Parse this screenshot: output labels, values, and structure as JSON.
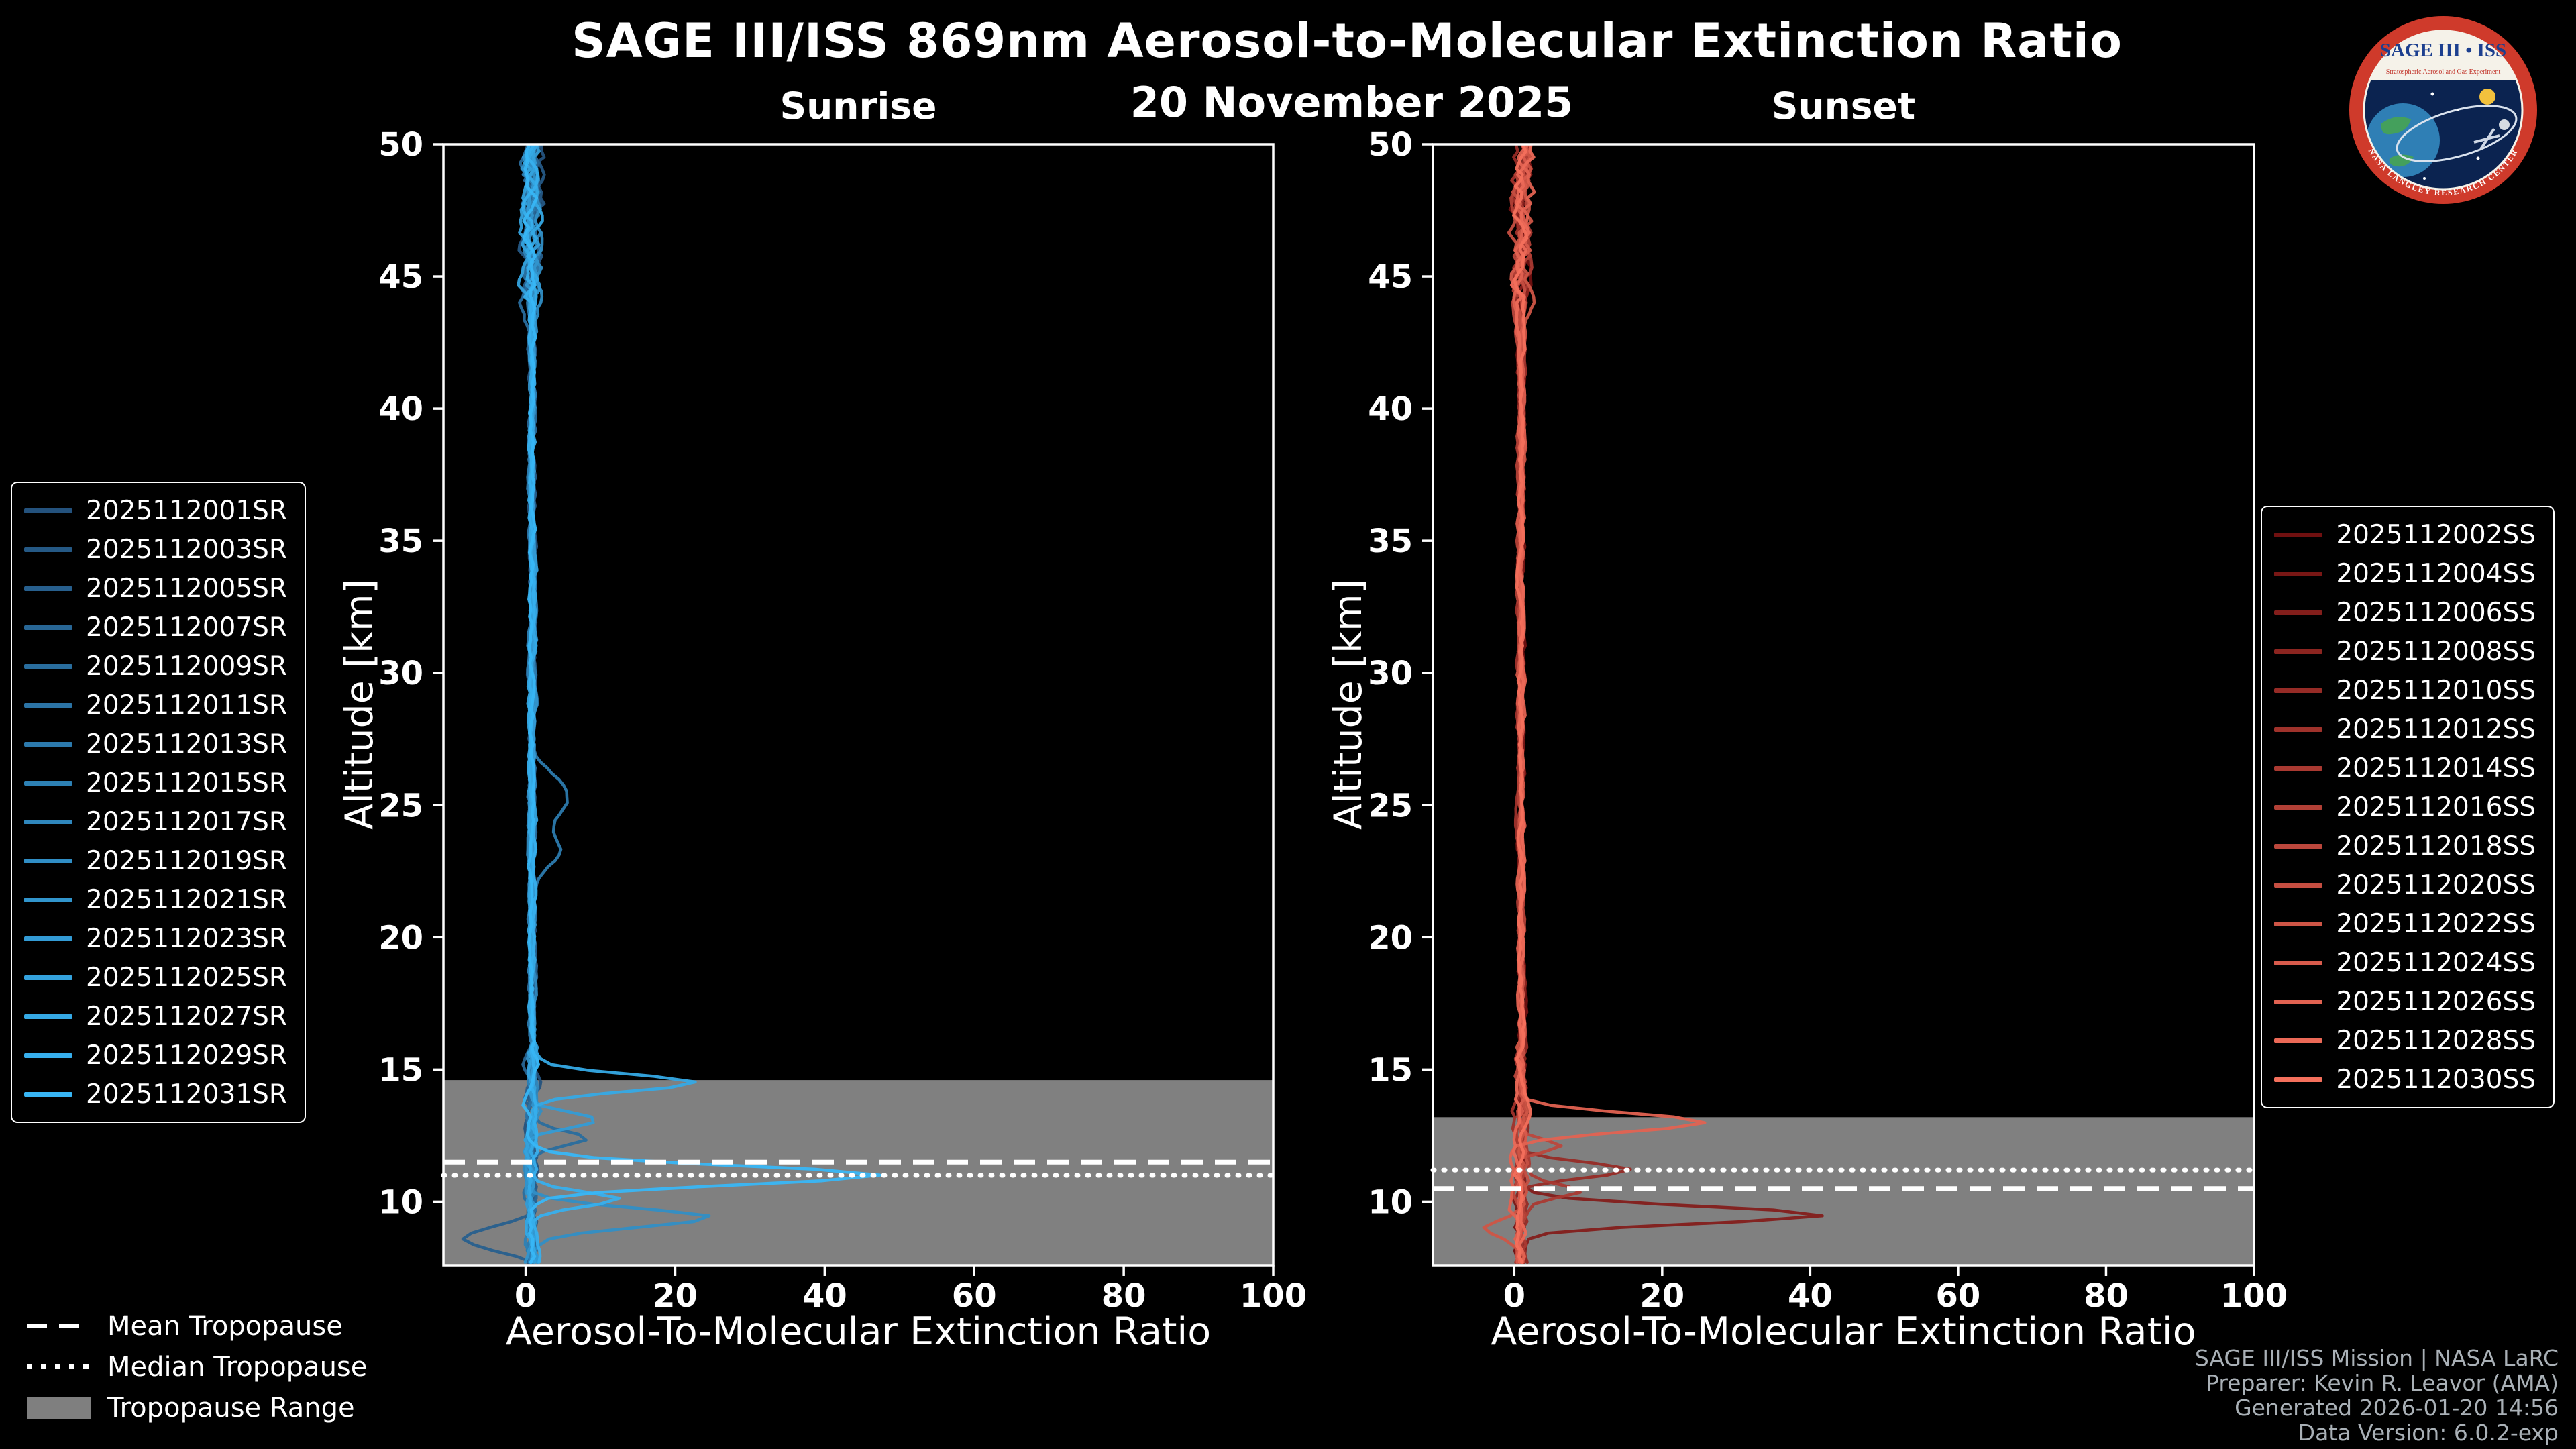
{
  "header": {
    "title": "SAGE III/ISS 869nm Aerosol-to-Molecular Extinction Ratio",
    "date": "20 November 2025"
  },
  "logo": {
    "name": "SAGE III • ISS",
    "subtitle": "Stratospheric Aerosol and Gas Experiment",
    "ring_text": "NASA LANGLEY RESEARCH CENTER",
    "border_color": "#cf3a2b",
    "field_color": "#0b2350"
  },
  "tropopause_legend": {
    "mean_label": "Mean Tropopause",
    "median_label": "Median Tropopause",
    "range_label": "Tropopause Range",
    "range_color": "#7f7f7f"
  },
  "credits": {
    "line1": "SAGE III/ISS Mission | NASA LaRC",
    "line2": "Preparer: Kevin R. Leavor (AMA)",
    "line3": "Generated 2026-01-20 14:56",
    "line4": "Data Version: 6.0.2-exp"
  },
  "chart_data": {
    "type": "line",
    "title": "SAGE III/ISS 869nm Aerosol-to-Molecular Extinction Ratio",
    "subtitle": "20 November 2025",
    "description": "Two-panel vertical profile plot of aerosol-to-molecular extinction ratio vs altitude; profiles cluster near ratio 0-3 from 50 km down to ~15 km with enhanced peaks below the tropopause.",
    "style": {
      "background": "#000000",
      "frame_color": "#ffffff",
      "tropopause_line_color": "#ffffff",
      "tropopause_range_color": "#808080"
    },
    "panels": [
      {
        "id": "sunrise",
        "title": "Sunrise",
        "xlabel": "Aerosol-To-Molecular Extinction Ratio",
        "ylabel": "Altitude [km]",
        "xlim": [
          -11,
          100
        ],
        "ylim": [
          7.6,
          50
        ],
        "x_ticks": [
          0,
          20,
          40,
          60,
          80,
          100
        ],
        "y_ticks": [
          10,
          15,
          20,
          25,
          30,
          35,
          40,
          45,
          50
        ],
        "tropopause": {
          "range_top_km": 14.6,
          "range_bottom_km": 7.6,
          "mean_km": 11.5,
          "median_km": 11.0
        },
        "series": [
          {
            "label": "2025112001SR",
            "color": "#24527d"
          },
          {
            "label": "2025112003SR",
            "color": "#255985"
          },
          {
            "label": "2025112005SR",
            "color": "#275f8d"
          },
          {
            "label": "2025112007SR",
            "color": "#286695"
          },
          {
            "label": "2025112009SR",
            "color": "#296d9d"
          },
          {
            "label": "2025112011SR",
            "color": "#2b73a5"
          },
          {
            "label": "2025112013SR",
            "color": "#2c7aad"
          },
          {
            "label": "2025112015SR",
            "color": "#2d81b5"
          },
          {
            "label": "2025112017SR",
            "color": "#2f87bd"
          },
          {
            "label": "2025112019SR",
            "color": "#308ec5"
          },
          {
            "label": "2025112021SR",
            "color": "#3195cd"
          },
          {
            "label": "2025112023SR",
            "color": "#339bd5"
          },
          {
            "label": "2025112025SR",
            "color": "#34a2dd"
          },
          {
            "label": "2025112027SR",
            "color": "#35a9e5"
          },
          {
            "label": "2025112029SR",
            "color": "#37afed"
          },
          {
            "label": "2025112031SR",
            "color": "#38b6f5"
          }
        ],
        "features": [
          {
            "series_index": 6,
            "alt_km": 25.3,
            "peak_ratio": 5,
            "width_km": 1.1
          },
          {
            "series_index": 6,
            "alt_km": 23.3,
            "peak_ratio": 3.5,
            "width_km": 0.8
          },
          {
            "series_index": 13,
            "alt_km": 14.5,
            "peak_ratio": 21,
            "width_km": 0.45
          },
          {
            "series_index": 11,
            "alt_km": 13.1,
            "peak_ratio": 9,
            "width_km": 0.4
          },
          {
            "series_index": 4,
            "alt_km": 12.4,
            "peak_ratio": 6,
            "width_km": 0.35
          },
          {
            "series_index": 15,
            "alt_km": 11.0,
            "peak_ratio": 46,
            "width_km": 0.5
          },
          {
            "series_index": 14,
            "alt_km": 10.1,
            "peak_ratio": 12,
            "width_km": 0.4
          },
          {
            "series_index": 9,
            "alt_km": 9.4,
            "peak_ratio": 24,
            "width_km": 0.5
          },
          {
            "series_index": 2,
            "alt_km": 8.6,
            "peak_ratio": -10,
            "width_km": 0.6
          }
        ]
      },
      {
        "id": "sunset",
        "title": "Sunset",
        "xlabel": "Aerosol-To-Molecular Extinction Ratio",
        "ylabel": "Altitude [km]",
        "xlim": [
          -11,
          100
        ],
        "ylim": [
          7.6,
          50
        ],
        "x_ticks": [
          0,
          20,
          40,
          60,
          80,
          100
        ],
        "y_ticks": [
          10,
          15,
          20,
          25,
          30,
          35,
          40,
          45,
          50
        ],
        "tropopause": {
          "range_top_km": 13.2,
          "range_bottom_km": 7.6,
          "mean_km": 10.5,
          "median_km": 11.2
        },
        "series": [
          {
            "label": "2025112002SS",
            "color": "#701010"
          },
          {
            "label": "2025112004SS",
            "color": "#791715"
          },
          {
            "label": "2025112006SS",
            "color": "#831e1b"
          },
          {
            "label": "2025112008SS",
            "color": "#8c2520"
          },
          {
            "label": "2025112010SS",
            "color": "#962b26"
          },
          {
            "label": "2025112012SS",
            "color": "#9f322b"
          },
          {
            "label": "2025112014SS",
            "color": "#a93931"
          },
          {
            "label": "2025112016SS",
            "color": "#b24036"
          },
          {
            "label": "2025112018SS",
            "color": "#bb473c"
          },
          {
            "label": "2025112020SS",
            "color": "#c54e41"
          },
          {
            "label": "2025112022SS",
            "color": "#ce5546"
          },
          {
            "label": "2025112024SS",
            "color": "#d85b4c"
          },
          {
            "label": "2025112026SS",
            "color": "#e16251"
          },
          {
            "label": "2025112028SS",
            "color": "#eb6957"
          },
          {
            "label": "2025112030SS",
            "color": "#f4705c"
          }
        ],
        "features": [
          {
            "series_index": 12,
            "alt_km": 13.0,
            "peak_ratio": 26,
            "width_km": 0.5
          },
          {
            "series_index": 8,
            "alt_km": 12.1,
            "peak_ratio": 6,
            "width_km": 0.35
          },
          {
            "series_index": 4,
            "alt_km": 11.2,
            "peak_ratio": 15,
            "width_km": 0.4
          },
          {
            "series_index": 6,
            "alt_km": 10.4,
            "peak_ratio": 7,
            "width_km": 0.35
          },
          {
            "series_index": 2,
            "alt_km": 9.5,
            "peak_ratio": 40,
            "width_km": 0.45
          },
          {
            "series_index": 10,
            "alt_km": 9.0,
            "peak_ratio": -5,
            "width_km": 0.5
          }
        ]
      }
    ]
  }
}
